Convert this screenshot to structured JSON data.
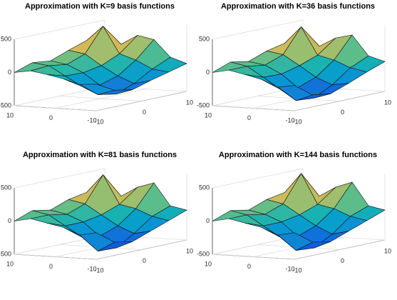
{
  "chart_data": [
    {
      "type": "surface",
      "title": "Approximation with K=9 basis functions",
      "x": [
        -10,
        -6,
        -2,
        2,
        6,
        10
      ],
      "y": [
        -10,
        -6,
        -2,
        2,
        6,
        10
      ],
      "z": [
        [
          -100,
          -250,
          -300,
          -220,
          -150,
          -80
        ],
        [
          -120,
          -330,
          -380,
          -280,
          -120,
          0
        ],
        [
          -50,
          -220,
          -260,
          -180,
          0,
          250
        ],
        [
          0,
          -80,
          -90,
          -40,
          80,
          300
        ],
        [
          40,
          60,
          20,
          120,
          480,
          150
        ],
        [
          0,
          90,
          60,
          160,
          250,
          80
        ]
      ],
      "xlim": [
        -10,
        10
      ],
      "ylim": [
        -10,
        10
      ],
      "zlim": [
        -500,
        500
      ],
      "xticks": [
        -10,
        0,
        10
      ],
      "yticks": [
        -10,
        0,
        10
      ],
      "zticks": [
        -500,
        0,
        500
      ]
    },
    {
      "type": "surface",
      "title": "Approximation with K=36 basis functions",
      "x": [
        -10,
        -6,
        -2,
        2,
        6,
        10
      ],
      "y": [
        -10,
        -6,
        -2,
        2,
        6,
        10
      ],
      "z": [
        [
          -120,
          -320,
          -360,
          -260,
          -150,
          -50
        ],
        [
          -160,
          -420,
          -440,
          -300,
          -100,
          20
        ],
        [
          -60,
          -260,
          -300,
          -200,
          0,
          320
        ],
        [
          0,
          -100,
          -110,
          -40,
          60,
          260
        ],
        [
          50,
          50,
          10,
          110,
          470,
          120
        ],
        [
          0,
          100,
          50,
          150,
          210,
          60
        ]
      ],
      "xlim": [
        -10,
        10
      ],
      "ylim": [
        -10,
        10
      ],
      "zlim": [
        -500,
        500
      ],
      "xticks": [
        -10,
        0,
        10
      ],
      "yticks": [
        -10,
        0,
        10
      ],
      "zticks": [
        -500,
        0,
        500
      ]
    },
    {
      "type": "surface",
      "title": "Approximation with K=81 basis functions",
      "x": [
        -10,
        -6,
        -2,
        2,
        6,
        10
      ],
      "y": [
        -10,
        -6,
        -2,
        2,
        6,
        10
      ],
      "z": [
        [
          -100,
          -300,
          -350,
          -250,
          -150,
          -50
        ],
        [
          -150,
          -450,
          -460,
          -300,
          -100,
          0
        ],
        [
          -50,
          -250,
          -300,
          -200,
          0,
          330
        ],
        [
          0,
          -100,
          -100,
          -50,
          50,
          250
        ],
        [
          50,
          50,
          0,
          100,
          480,
          100
        ],
        [
          0,
          100,
          50,
          150,
          200,
          50
        ]
      ],
      "xlim": [
        -10,
        10
      ],
      "ylim": [
        -10,
        10
      ],
      "zlim": [
        -500,
        500
      ],
      "xticks": [
        -10,
        0,
        10
      ],
      "yticks": [
        -10,
        0,
        10
      ],
      "zticks": [
        -500,
        0,
        500
      ]
    },
    {
      "type": "surface",
      "title": "Approximation with K=144 basis functions",
      "x": [
        -10,
        -6,
        -2,
        2,
        6,
        10
      ],
      "y": [
        -10,
        -6,
        -2,
        2,
        6,
        10
      ],
      "z": [
        [
          -100,
          -300,
          -350,
          -250,
          -150,
          -50
        ],
        [
          -150,
          -440,
          -460,
          -310,
          -100,
          0
        ],
        [
          -50,
          -250,
          -300,
          -200,
          0,
          340
        ],
        [
          0,
          -100,
          -100,
          -50,
          50,
          250
        ],
        [
          50,
          50,
          0,
          100,
          500,
          100
        ],
        [
          0,
          100,
          50,
          150,
          200,
          50
        ]
      ],
      "xlim": [
        -10,
        10
      ],
      "ylim": [
        -10,
        10
      ],
      "zlim": [
        -500,
        500
      ],
      "xticks": [
        -10,
        0,
        10
      ],
      "yticks": [
        -10,
        0,
        10
      ],
      "zticks": [
        -500,
        0,
        500
      ]
    }
  ]
}
